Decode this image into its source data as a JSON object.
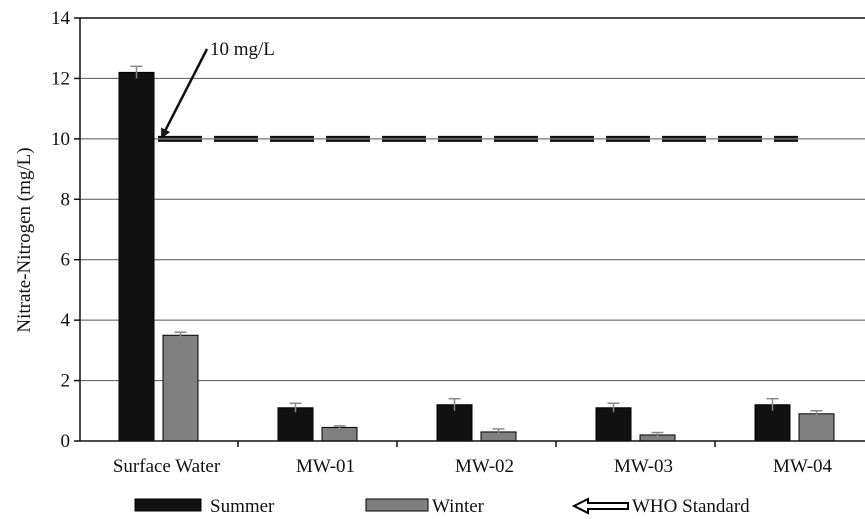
{
  "chart_data": {
    "type": "bar",
    "title": "",
    "xlabel": "",
    "ylabel": "Nitrate-Nitrogen (mg/L)",
    "ylim": [
      0,
      14
    ],
    "yticks": [
      "0",
      "2",
      "4",
      "6",
      "8",
      "10",
      "12",
      "14"
    ],
    "grid": true,
    "categories": [
      "Surface Water",
      "MW-01",
      "MW-02",
      "MW-03",
      "MW-04"
    ],
    "series": [
      {
        "name": "Summer",
        "color": "#111111",
        "values": [
          12.2,
          1.1,
          1.2,
          1.1,
          1.2
        ],
        "errors": [
          0.2,
          0.15,
          0.2,
          0.15,
          0.2
        ]
      },
      {
        "name": "Winter",
        "color": "#808080",
        "values": [
          3.5,
          0.45,
          0.3,
          0.2,
          0.9
        ],
        "errors": [
          0.1,
          0.05,
          0.1,
          0.08,
          0.1
        ]
      }
    ],
    "reference_line": {
      "name": "WHO Standard",
      "value": 10,
      "style": "dashed"
    },
    "annotation": {
      "text": "10 mg/L",
      "points_to": 10
    },
    "legend": {
      "position": "bottom",
      "items": [
        "Summer",
        "Winter",
        "WHO Standard"
      ]
    }
  }
}
